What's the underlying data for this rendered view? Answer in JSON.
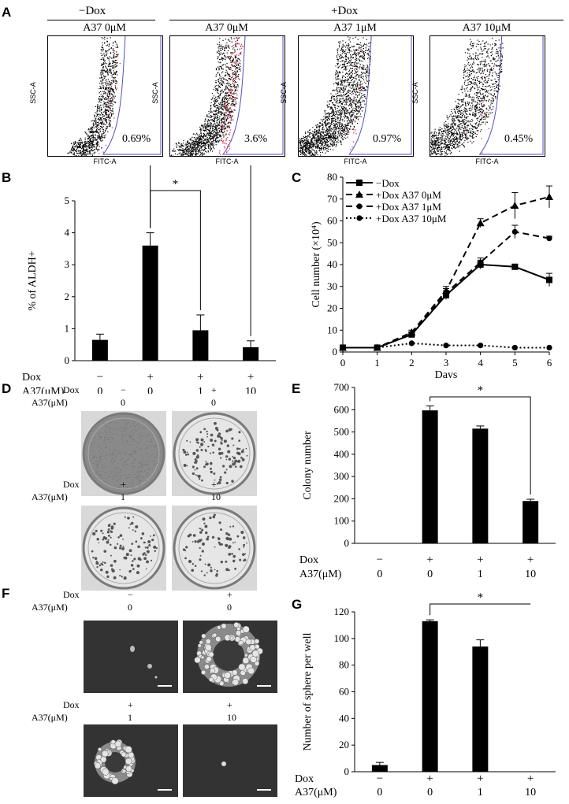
{
  "panel_letters": {
    "A": "A",
    "B": "B",
    "C": "C",
    "D": "D",
    "E": "E",
    "F": "F",
    "G": "G"
  },
  "panelA": {
    "group_minus": "−Dox",
    "group_plus": "+Dox",
    "plots": [
      {
        "title": "A37 0μM",
        "percent": "0.69%",
        "ylabel": "SSC-A",
        "xlabel": "FITC-A"
      },
      {
        "title": "A37 0μM",
        "percent": "3.6%",
        "ylabel": "SSC-A",
        "xlabel": "FITC-A"
      },
      {
        "title": "A37 1μM",
        "percent": "0.97%",
        "ylabel": "SSC-A",
        "xlabel": "FITC-A"
      },
      {
        "title": "A37 10μM",
        "percent": "0.45%",
        "ylabel": "SSC-A",
        "xlabel": "FITC-A"
      }
    ]
  },
  "chart_data": [
    {
      "id": "B",
      "type": "bar",
      "ylabel": "% of ALDH+",
      "ylim": [
        0,
        5
      ],
      "yticks": [
        0,
        1,
        2,
        3,
        4,
        5
      ],
      "values": [
        0.65,
        3.6,
        0.95,
        0.42
      ],
      "errors": [
        0.18,
        0.4,
        0.48,
        0.2
      ],
      "dox": [
        "−",
        "+",
        "+",
        "+"
      ],
      "a37": [
        "0",
        "0",
        "1",
        "10"
      ],
      "row_labels": {
        "dox": "Dox",
        "a37": "A37(μM)"
      },
      "significance": [
        {
          "from": 1,
          "to": 2,
          "label": "*"
        },
        {
          "from": 1,
          "to": 3,
          "label": "*"
        }
      ]
    },
    {
      "id": "C",
      "type": "line",
      "xlabel": "Days",
      "ylabel": "Cell number (×10⁴)",
      "xlim": [
        0,
        6
      ],
      "ylim": [
        0,
        80
      ],
      "xticks": [
        0,
        1,
        2,
        3,
        4,
        5,
        6
      ],
      "yticks": [
        0,
        10,
        20,
        30,
        40,
        50,
        60,
        70,
        80
      ],
      "x": [
        0,
        1,
        2,
        3,
        4,
        5,
        6
      ],
      "series": [
        {
          "name": "−Dox",
          "marker": "square",
          "dash": "solid",
          "values": [
            2,
            2,
            8,
            26,
            40,
            39,
            33
          ],
          "errors": [
            0,
            0,
            1,
            2,
            2,
            1,
            3
          ]
        },
        {
          "name": "+Dox A37 0μM",
          "marker": "triangle",
          "dash": "dashed",
          "values": [
            2,
            2,
            9,
            28,
            59,
            67,
            71
          ],
          "errors": [
            0,
            0,
            1,
            2,
            2,
            6,
            5
          ]
        },
        {
          "name": "+Dox A37 1μM",
          "marker": "circle",
          "dash": "dashed",
          "values": [
            2,
            2,
            8,
            27,
            41,
            55,
            52
          ],
          "errors": [
            0,
            0,
            1,
            2,
            2,
            3,
            1
          ]
        },
        {
          "name": "+Dox A37 10μM",
          "marker": "circle",
          "dash": "dotted",
          "values": [
            2,
            2,
            4,
            3,
            3,
            2,
            2
          ],
          "errors": [
            0,
            0,
            0,
            0,
            0,
            0,
            0
          ]
        }
      ]
    },
    {
      "id": "E",
      "type": "bar",
      "ylabel": "Colony number",
      "ylim": [
        0,
        700
      ],
      "yticks": [
        0,
        100,
        200,
        300,
        400,
        500,
        600,
        700
      ],
      "values": [
        0,
        597,
        515,
        190
      ],
      "errors": [
        0,
        20,
        12,
        8
      ],
      "dox": [
        "−",
        "+",
        "+",
        "+"
      ],
      "a37": [
        "0",
        "0",
        "1",
        "10"
      ],
      "row_labels": {
        "dox": "Dox",
        "a37": "A37(μM)"
      },
      "significance": [
        {
          "from": 1,
          "to": 3,
          "label": "*"
        }
      ]
    },
    {
      "id": "G",
      "type": "bar",
      "ylabel": "Number of sphere per well",
      "ylim": [
        0,
        120
      ],
      "yticks": [
        0,
        20,
        40,
        60,
        80,
        100,
        120
      ],
      "values": [
        5,
        113,
        94,
        0
      ],
      "errors": [
        2,
        1,
        5,
        0
      ],
      "dox": [
        "−",
        "+",
        "+",
        "+"
      ],
      "a37": [
        "0",
        "0",
        "1",
        "10"
      ],
      "row_labels": {
        "dox": "Dox",
        "a37": "A37(μM)"
      },
      "significance": [
        {
          "from": 1,
          "to": 3,
          "label": "*"
        }
      ]
    }
  ],
  "panelD": {
    "row_labels": {
      "dox": "Dox",
      "a37": "A37(μM)"
    },
    "top": [
      {
        "dox": "−",
        "a37": "0"
      },
      {
        "dox": "+",
        "a37": "0"
      }
    ],
    "bottom": [
      {
        "dox": "+",
        "a37": "1"
      },
      {
        "dox": "+",
        "a37": "10"
      }
    ]
  },
  "panelF": {
    "row_labels": {
      "dox": "Dox",
      "a37": "A37(μM)"
    },
    "top": [
      {
        "dox": "−",
        "a37": "0"
      },
      {
        "dox": "+",
        "a37": "0"
      }
    ],
    "bottom": [
      {
        "dox": "+",
        "a37": "1"
      },
      {
        "dox": "+",
        "a37": "10"
      }
    ]
  }
}
